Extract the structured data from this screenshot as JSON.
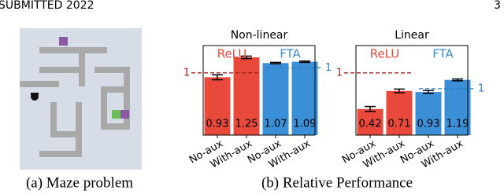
{
  "header": {
    "left": "SUBMITTED 2022",
    "page": "3"
  },
  "figure": {
    "caption_a": "(a) Maze problem",
    "caption_b": "(b) Relative Performance"
  },
  "chart_data": [
    {
      "type": "bar",
      "title": "Non-linear",
      "categories": [
        "No-aux",
        "With-aux",
        "No-aux",
        "With-aux"
      ],
      "series": [
        {
          "name": "ReLU",
          "color": "#e8493a",
          "values": [
            0.93,
            1.25,
            null,
            null
          ],
          "errors": [
            0.04,
            0.02,
            null,
            null
          ],
          "reference": 1
        },
        {
          "name": "FTA",
          "color": "#3b8fd6",
          "axis": "y2",
          "values": [
            null,
            null,
            1.07,
            1.09
          ],
          "errors": [
            null,
            null,
            0.01,
            0.01
          ],
          "reference": 1
        }
      ],
      "ylim": [
        0,
        1.44
      ],
      "y2lim": [
        0,
        1.33
      ]
    },
    {
      "type": "bar",
      "title": "Linear",
      "categories": [
        "No-aux",
        "With-aux",
        "No-aux",
        "With-aux"
      ],
      "series": [
        {
          "name": "ReLU",
          "color": "#e8493a",
          "values": [
            0.42,
            0.71,
            null,
            null
          ],
          "errors": [
            0.04,
            0.03,
            null,
            null
          ],
          "reference": 1
        },
        {
          "name": "FTA",
          "color": "#3b8fd6",
          "axis": "y2",
          "values": [
            null,
            null,
            0.93,
            1.19
          ],
          "errors": [
            null,
            null,
            0.03,
            0.02
          ],
          "reference": 1
        }
      ],
      "ylim": [
        0,
        1.44
      ],
      "y2lim": [
        0,
        1.93
      ]
    }
  ]
}
